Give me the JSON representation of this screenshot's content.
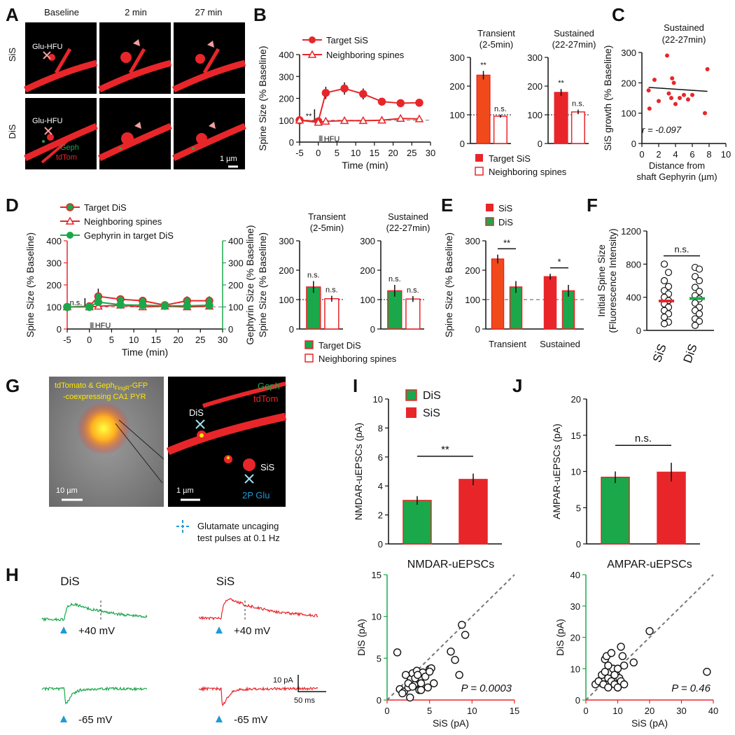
{
  "colors": {
    "red": "#e8262a",
    "orange_red": "#f04a1a",
    "green": "#1aa84a",
    "blue": "#1e9ad6",
    "pink": "#f0a0a0",
    "grey_dash": "#777777"
  },
  "panels": {
    "A": {
      "letter": "A",
      "col_titles": [
        "Baseline",
        "2 min",
        "27 min"
      ],
      "row_labels": [
        "SiS",
        "DiS"
      ],
      "stim_label": "Glu-HFU",
      "geph_label": "Geph",
      "tdtom_label": "tdTom",
      "scale_label": "1 µm"
    },
    "B": {
      "letter": "B",
      "legend": [
        "Target SiS",
        "Neighboring spines"
      ],
      "hfu_label": "HFU",
      "sig": "**",
      "bar_legend": [
        "Target SiS",
        "Neighboring spines"
      ]
    },
    "C": {
      "letter": "C",
      "stat": "r = -0.097"
    },
    "D": {
      "letter": "D",
      "legend": [
        "Target DiS",
        "Neighboring spines",
        "Gephyrin in target DiS"
      ],
      "hfu_label": "HFU",
      "sig": "n.s.",
      "bar_legend": [
        "Target DiS",
        "Neighboring spines"
      ]
    },
    "E": {
      "letter": "E",
      "legend": [
        "SiS",
        "DiS"
      ]
    },
    "F": {
      "letter": "F"
    },
    "G": {
      "letter": "G",
      "cell_label_1": "tdTomato & Geph",
      "cell_label_sub": "FingR",
      "cell_label_2": "-GFP",
      "cell_label_3": "-coexpressing CA1 PYR",
      "scale_1": "10 µm",
      "scale_2": "1 µm",
      "dis_label": "DiS",
      "sis_label": "SiS",
      "glu_label": "2P Glu",
      "geph_label": "Geph",
      "tdtom_label": "tdTom",
      "note_1": "Glutamate uncaging",
      "note_2": "test pulses at 0.1 Hz"
    },
    "H": {
      "letter": "H",
      "dis": "DiS",
      "sis": "SiS",
      "v_pos": "+40 mV",
      "v_neg": "-65 mV",
      "scale_y": "10 pA",
      "scale_x": "50 ms"
    },
    "I": {
      "letter": "I",
      "legend": [
        "DiS",
        "SiS"
      ]
    },
    "J": {
      "letter": "J"
    }
  },
  "chart_data": [
    {
      "id": "B_time",
      "type": "line",
      "xlabel": "Time (min)",
      "ylabel": "Spine Size (% Baseline)",
      "xlim": [
        -5,
        30
      ],
      "ylim": [
        0,
        400
      ],
      "xticks": [
        -5,
        0,
        5,
        10,
        15,
        20,
        25,
        30
      ],
      "yticks": [
        0,
        100,
        200,
        300,
        400
      ],
      "series": [
        {
          "name": "Target SiS",
          "x": [
            -5,
            0,
            2,
            7,
            12,
            17,
            22,
            27
          ],
          "y": [
            100,
            95,
            225,
            245,
            220,
            185,
            178,
            180
          ],
          "err": [
            8,
            8,
            28,
            28,
            25,
            12,
            12,
            12
          ]
        },
        {
          "name": "Neighboring spines",
          "x": [
            -5,
            0,
            2,
            7,
            12,
            17,
            22,
            27
          ],
          "y": [
            100,
            90,
            95,
            98,
            98,
            100,
            108,
            106
          ],
          "err": [
            5,
            5,
            6,
            6,
            6,
            6,
            6,
            6
          ]
        }
      ]
    },
    {
      "id": "B_transient",
      "type": "bar",
      "title": "Transient (2-5min)",
      "ylim": [
        0,
        300
      ],
      "yticks": [
        0,
        100,
        200,
        300
      ],
      "categories": [
        "Target SiS",
        "Neighboring spines"
      ],
      "values": [
        238,
        95
      ],
      "err": [
        15,
        5
      ],
      "labels": [
        "**",
        "n.s."
      ]
    },
    {
      "id": "B_sustained",
      "type": "bar",
      "title": "Sustained (22-27min)",
      "ylim": [
        0,
        300
      ],
      "yticks": [
        0,
        100,
        200,
        300
      ],
      "categories": [
        "Target SiS",
        "Neighboring spines"
      ],
      "values": [
        178,
        110
      ],
      "err": [
        12,
        8
      ],
      "labels": [
        "**",
        "n.s."
      ]
    },
    {
      "id": "C_scatter",
      "type": "scatter",
      "title": "Sustained (22-27min)",
      "xlabel": "Distance from shaft Gephyrin (µm)",
      "ylabel": "SiS growth (% Baseline)",
      "xlim": [
        0,
        10
      ],
      "ylim": [
        0,
        300
      ],
      "xticks": [
        0,
        2,
        4,
        6,
        8,
        10
      ],
      "yticks": [
        0,
        100,
        200,
        300
      ],
      "x": [
        0.8,
        0.9,
        1.5,
        2.0,
        3.0,
        3.2,
        3.5,
        3.6,
        3.8,
        4.0,
        4.5,
        5.0,
        5.5,
        6.0,
        7.5,
        7.8
      ],
      "y": [
        175,
        115,
        210,
        140,
        290,
        165,
        150,
        215,
        200,
        130,
        150,
        160,
        145,
        160,
        100,
        245
      ],
      "fit": {
        "x": [
          0.8,
          7.8
        ],
        "y": [
          185,
          172
        ]
      }
    },
    {
      "id": "D_time",
      "type": "line",
      "xlabel": "Time (min)",
      "ylabel": "Spine Size (% Baseline)",
      "ylabel2": "Gephyrin Size (% Baseline)",
      "xlim": [
        -5,
        30
      ],
      "ylim": [
        0,
        400
      ],
      "xticks": [
        -5,
        0,
        5,
        10,
        15,
        20,
        25,
        30
      ],
      "yticks": [
        0,
        100,
        200,
        300,
        400
      ],
      "series": [
        {
          "name": "Target DiS",
          "x": [
            -5,
            0,
            2,
            7,
            12,
            17,
            22,
            27
          ],
          "y": [
            100,
            103,
            148,
            135,
            128,
            108,
            128,
            128
          ],
          "err": [
            6,
            10,
            35,
            12,
            10,
            8,
            20,
            20
          ]
        },
        {
          "name": "Neighboring spines",
          "x": [
            -5,
            0,
            2,
            7,
            12,
            17,
            22,
            27
          ],
          "y": [
            100,
            100,
            103,
            108,
            100,
            103,
            100,
            103
          ],
          "err": [
            4,
            4,
            5,
            5,
            5,
            5,
            5,
            5
          ]
        },
        {
          "name": "Gephyrin in target DiS",
          "x": [
            -5,
            0,
            2,
            7,
            12,
            17,
            22,
            27
          ],
          "y": [
            100,
            100,
            122,
            110,
            108,
            105,
            105,
            108
          ],
          "err": [
            3,
            5,
            8,
            6,
            6,
            6,
            6,
            6
          ]
        }
      ]
    },
    {
      "id": "D_transient",
      "type": "bar",
      "title": "Transient (2-5min)",
      "ylabel": "Spine Size (% Baseline)",
      "ylim": [
        0,
        300
      ],
      "yticks": [
        0,
        100,
        200,
        300
      ],
      "categories": [
        "Target DiS",
        "Neighboring spines"
      ],
      "values": [
        143,
        103
      ],
      "err": [
        20,
        10
      ],
      "labels": [
        "n.s.",
        "n.s."
      ]
    },
    {
      "id": "D_sustained",
      "type": "bar",
      "title": "Sustained (22-27min)",
      "ylim": [
        0,
        300
      ],
      "yticks": [
        0,
        100,
        200,
        300
      ],
      "categories": [
        "Target DiS",
        "Neighboring spines"
      ],
      "values": [
        130,
        102
      ],
      "err": [
        20,
        10
      ],
      "labels": [
        "n.s.",
        "n.s."
      ]
    },
    {
      "id": "E_bars",
      "type": "bar",
      "ylabel": "Spine Size (% Baseline)",
      "ylim": [
        0,
        300
      ],
      "yticks": [
        0,
        100,
        200,
        300
      ],
      "categories": [
        "Transient",
        "Sustained"
      ],
      "series": [
        {
          "name": "SiS",
          "values": [
            238,
            178
          ],
          "err": [
            15,
            10
          ]
        },
        {
          "name": "DiS",
          "values": [
            143,
            130
          ],
          "err": [
            20,
            20
          ]
        }
      ],
      "sig": [
        "**",
        "*"
      ]
    },
    {
      "id": "F_dots",
      "type": "scatter",
      "ylabel": "Initial Spine Size (Fluorescence Intensity)",
      "ylim": [
        0,
        1200
      ],
      "yticks": [
        0,
        400,
        800,
        1200
      ],
      "categories": [
        "SiS",
        "DiS"
      ],
      "means": [
        355,
        385
      ],
      "sig": "n.s.",
      "points": {
        "SiS": [
          800,
          700,
          600,
          530,
          480,
          440,
          400,
          360,
          320,
          280,
          240,
          200,
          160,
          100,
          80
        ],
        "DiS": [
          760,
          740,
          650,
          600,
          520,
          470,
          420,
          380,
          330,
          280,
          240,
          200,
          140,
          110,
          60
        ]
      }
    },
    {
      "id": "I_bars",
      "type": "bar",
      "ylabel": "NMDAR-uEPSCs (pA)",
      "ylim": [
        0,
        10
      ],
      "yticks": [
        0,
        2,
        4,
        6,
        8,
        10
      ],
      "categories": [
        "DiS",
        "SiS"
      ],
      "values": [
        3.0,
        4.45
      ],
      "err": [
        0.3,
        0.4
      ],
      "sig": "**"
    },
    {
      "id": "J_bars",
      "type": "bar",
      "ylabel": "AMPAR-uEPSCs (pA)",
      "ylim": [
        0,
        20
      ],
      "yticks": [
        0,
        5,
        10,
        15,
        20
      ],
      "categories": [
        "DiS",
        "SiS"
      ],
      "values": [
        9.2,
        9.9
      ],
      "err": [
        0.8,
        1.3
      ],
      "sig": "n.s."
    },
    {
      "id": "H_nmda_scatter",
      "type": "scatter",
      "title": "NMDAR-uEPSCs",
      "xlabel": "SiS (pA)",
      "ylabel": "DiS (pA)",
      "stat": "P = 0.0003",
      "xlim": [
        0,
        15
      ],
      "ylim": [
        0,
        15
      ],
      "xticks": [
        0,
        5,
        10,
        15
      ],
      "yticks": [
        0,
        5,
        10,
        15
      ],
      "x": [
        1.2,
        1.5,
        2.0,
        2.2,
        2.5,
        2.7,
        2.8,
        3.0,
        3.2,
        3.3,
        3.5,
        3.8,
        4.0,
        4.2,
        4.5,
        4.8,
        5.0,
        5.2,
        5.5,
        7.5,
        8.0,
        8.5,
        8.8,
        9.2,
        2.5,
        3.0,
        4.0,
        5.0,
        1.8,
        3.6
      ],
      "y": [
        5.7,
        1.3,
        1.0,
        3.0,
        1.5,
        0.3,
        2.5,
        3.2,
        1.8,
        2.6,
        3.5,
        1.2,
        2.0,
        3.3,
        2.8,
        1.5,
        3.7,
        3.8,
        2.0,
        5.8,
        4.8,
        3.0,
        9.0,
        7.8,
        2.0,
        1.6,
        1.2,
        3.4,
        0.8,
        3.0
      ]
    },
    {
      "id": "H_ampa_scatter",
      "type": "scatter",
      "title": "AMPAR-uEPSCs",
      "xlabel": "SiS (pA)",
      "ylabel": "DiS (pA)",
      "stat": "P = 0.46",
      "xlim": [
        0,
        40
      ],
      "ylim": [
        0,
        40
      ],
      "xticks": [
        0,
        10,
        20,
        30,
        40
      ],
      "yticks": [
        0,
        10,
        20,
        30,
        40
      ],
      "x": [
        3,
        4,
        5,
        5.5,
        6,
        6.5,
        7,
        7.5,
        8,
        8.5,
        9,
        9.5,
        10,
        10.5,
        11,
        11.5,
        12,
        6,
        7,
        8,
        9,
        10,
        11,
        12,
        15,
        20,
        38,
        9,
        7,
        10
      ],
      "y": [
        5,
        6,
        8,
        5,
        13,
        14,
        7,
        9,
        15,
        10,
        6,
        8,
        4,
        7,
        17,
        14,
        11,
        9,
        4,
        6,
        8,
        10,
        6,
        5,
        12,
        22,
        9,
        5,
        11,
        4
      ]
    }
  ]
}
